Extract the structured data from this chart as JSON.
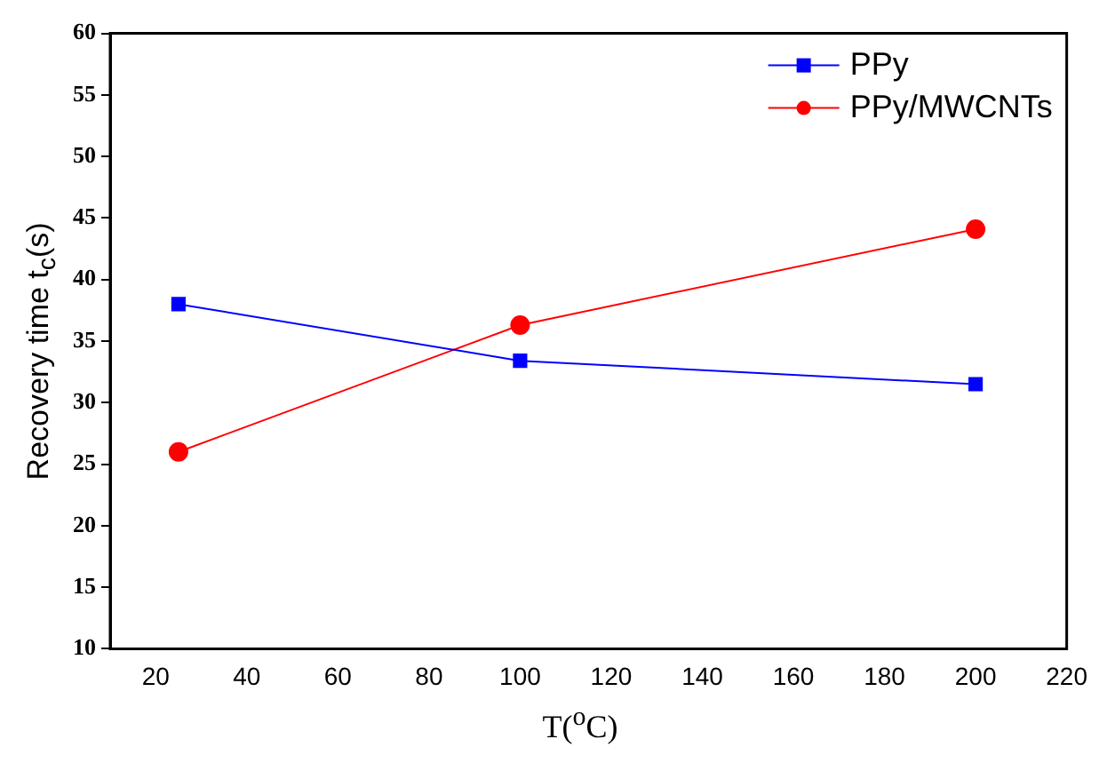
{
  "chart_data": {
    "type": "line",
    "xlabel": "T($^{o}$C)",
    "ylabel": "Recovery time t$_{c}$(s)",
    "x": [
      25,
      100,
      200
    ],
    "series": [
      {
        "name": "PPy",
        "color": "#0000ff",
        "values": [
          38.0,
          33.4,
          31.5
        ],
        "marker": "square"
      },
      {
        "name": "PPy/MWCNTs",
        "color": "#ff0000",
        "values": [
          26.0,
          36.3,
          44.1
        ],
        "marker": "circle"
      }
    ],
    "xlim": [
      10,
      220
    ],
    "xticks": [
      20,
      40,
      60,
      80,
      100,
      120,
      140,
      160,
      180,
      200,
      220
    ],
    "ylim": [
      10,
      60
    ],
    "yticks": [
      10,
      15,
      20,
      25,
      30,
      35,
      40,
      45,
      50,
      55,
      60
    ],
    "grid": false,
    "legend": "top right",
    "line_style": "solid"
  }
}
